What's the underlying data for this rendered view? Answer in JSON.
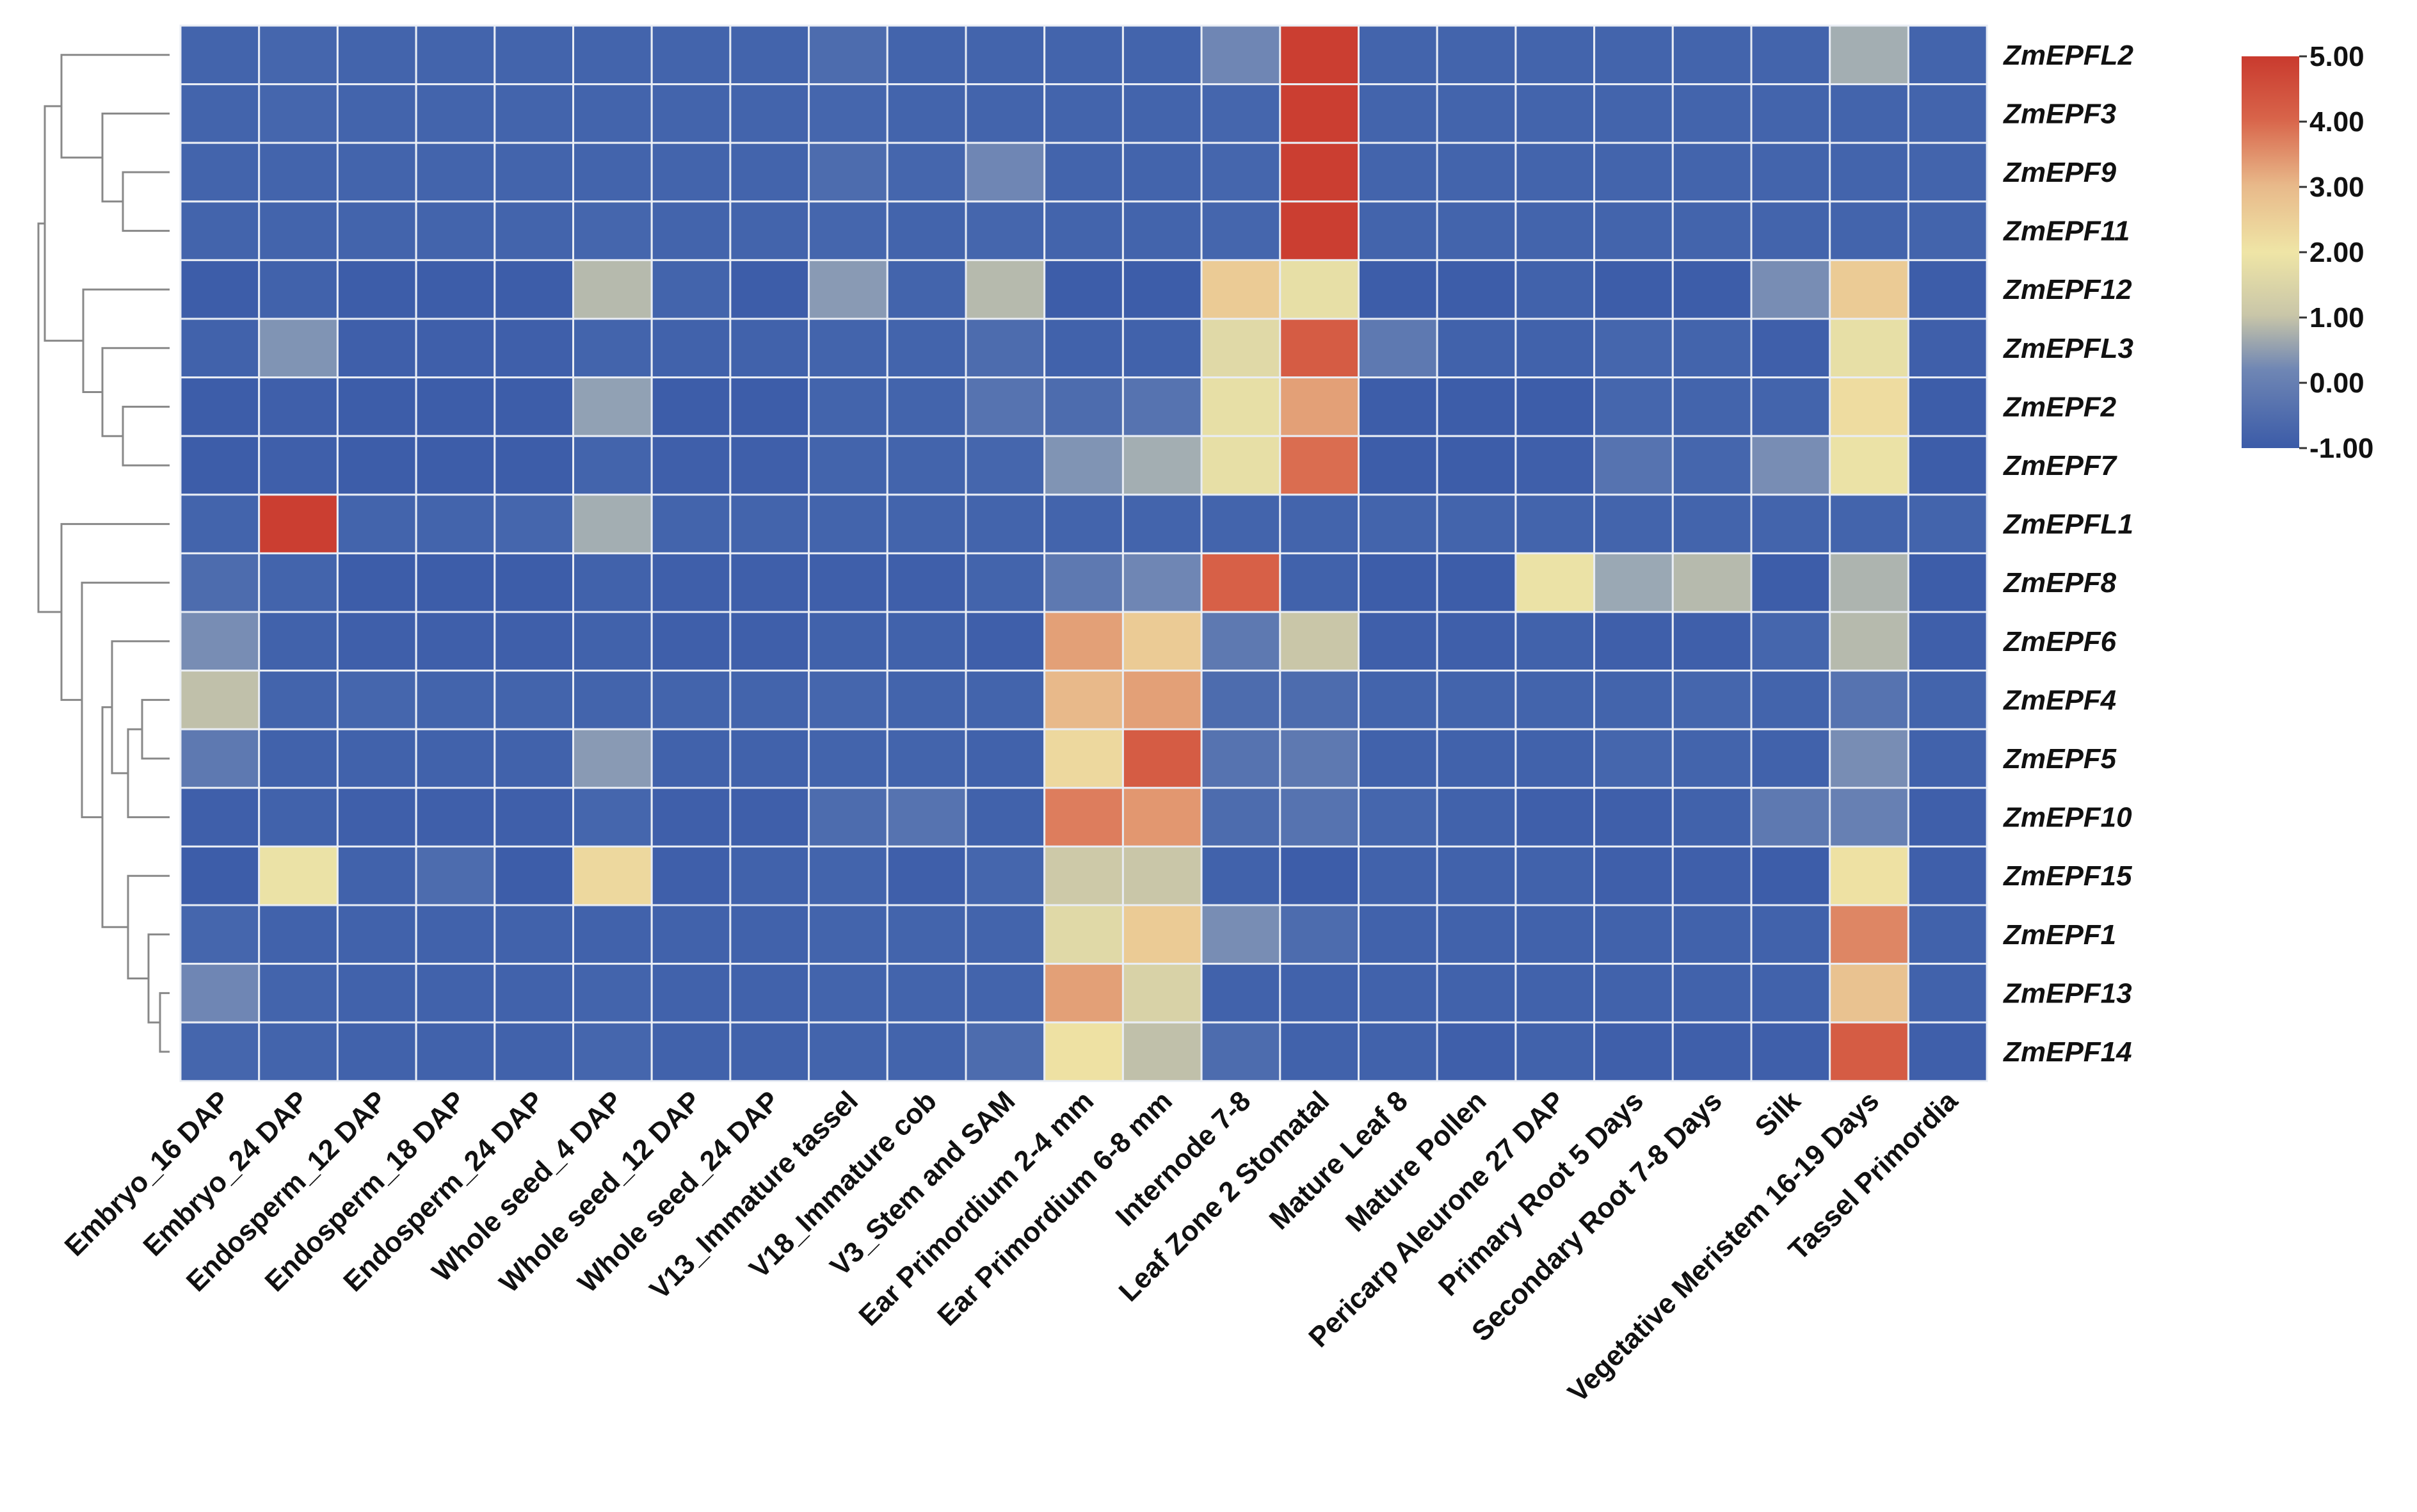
{
  "chart_data": {
    "type": "heatmap",
    "title": "",
    "rows": [
      "ZmEPFL2",
      "ZmEPF3",
      "ZmEPF9",
      "ZmEPF11",
      "ZmEPF12",
      "ZmEPFL3",
      "ZmEPF2",
      "ZmEPF7",
      "ZmEPFL1",
      "ZmEPF8",
      "ZmEPF6",
      "ZmEPF4",
      "ZmEPF5",
      "ZmEPF10",
      "ZmEPF15",
      "ZmEPF1",
      "ZmEPF13",
      "ZmEPF14"
    ],
    "columns": [
      "Embryo_16 DAP",
      "Embryo_24 DAP",
      "Endosperm_12 DAP",
      "Endosperm_18 DAP",
      "Endosperm_24 DAP",
      "Whole seed_4 DAP",
      "Whole seed_12 DAP",
      "Whole seed_24 DAP",
      "V13_Immature tassel",
      "V18_Immature cob",
      "V3_Stem and SAM",
      "Ear Primordium 2-4 mm",
      "Ear Primordium 6-8 mm",
      "Internode 7-8",
      "Leaf Zone 2 Stomatal",
      "Mature Leaf 8",
      "Mature Pollen",
      "Pericarp Aleurone 27 DAP",
      "Primary Root 5 Days",
      "Secondary Root 7-8 Days",
      "Silk",
      "Vegetative Meristem 16-19 Days",
      "Tassel Primordia"
    ],
    "values": [
      [
        -0.6,
        -0.5,
        -0.6,
        -0.6,
        -0.6,
        -0.6,
        -0.6,
        -0.6,
        -0.4,
        -0.6,
        -0.6,
        -0.6,
        -0.6,
        0.0,
        4.9,
        -0.6,
        -0.6,
        -0.6,
        -0.6,
        -0.6,
        -0.6,
        0.6,
        -0.6
      ],
      [
        -0.6,
        -0.5,
        -0.6,
        -0.6,
        -0.6,
        -0.6,
        -0.6,
        -0.6,
        -0.5,
        -0.6,
        -0.6,
        -0.6,
        -0.6,
        -0.5,
        4.9,
        -0.6,
        -0.6,
        -0.6,
        -0.6,
        -0.6,
        -0.6,
        -0.6,
        -0.6
      ],
      [
        -0.6,
        -0.6,
        -0.6,
        -0.6,
        -0.6,
        -0.6,
        -0.6,
        -0.6,
        -0.4,
        -0.5,
        0.0,
        -0.6,
        -0.6,
        -0.5,
        4.9,
        -0.6,
        -0.6,
        -0.6,
        -0.6,
        -0.6,
        -0.6,
        -0.6,
        -0.6
      ],
      [
        -0.6,
        -0.6,
        -0.6,
        -0.6,
        -0.6,
        -0.5,
        -0.6,
        -0.6,
        -0.5,
        -0.6,
        -0.5,
        -0.6,
        -0.6,
        -0.5,
        4.9,
        -0.6,
        -0.6,
        -0.6,
        -0.6,
        -0.6,
        -0.6,
        -0.6,
        -0.6
      ],
      [
        -0.9,
        -0.7,
        -0.9,
        -0.9,
        -0.9,
        0.8,
        -0.6,
        -0.9,
        0.3,
        -0.6,
        0.8,
        -0.9,
        -0.9,
        2.6,
        1.8,
        -0.9,
        -0.9,
        -0.7,
        -0.9,
        -0.9,
        0.1,
        2.6,
        -0.9
      ],
      [
        -0.7,
        0.2,
        -0.8,
        -0.8,
        -0.8,
        -0.6,
        -0.7,
        -0.7,
        -0.6,
        -0.6,
        -0.4,
        -0.7,
        -0.7,
        1.6,
        4.2,
        -0.2,
        -0.7,
        -0.7,
        -0.5,
        -0.6,
        -0.8,
        1.8,
        -0.8
      ],
      [
        -0.9,
        -0.8,
        -0.9,
        -0.9,
        -0.9,
        0.4,
        -0.9,
        -0.9,
        -0.6,
        -0.6,
        -0.3,
        -0.4,
        -0.3,
        1.8,
        3.3,
        -0.9,
        -0.9,
        -0.9,
        -0.5,
        -0.6,
        -0.6,
        2.2,
        -0.9
      ],
      [
        -0.9,
        -0.8,
        -0.9,
        -0.9,
        -0.9,
        -0.6,
        -0.8,
        -0.8,
        -0.6,
        -0.6,
        -0.5,
        0.2,
        0.6,
        1.8,
        3.9,
        -0.9,
        -0.9,
        -0.8,
        -0.3,
        -0.5,
        0.1,
        1.9,
        -0.9
      ],
      [
        -0.6,
        4.9,
        -0.6,
        -0.6,
        -0.5,
        0.6,
        -0.6,
        -0.6,
        -0.6,
        -0.6,
        -0.6,
        -0.6,
        -0.6,
        -0.6,
        -0.6,
        -0.6,
        -0.6,
        -0.6,
        -0.6,
        -0.6,
        -0.6,
        -0.6,
        -0.6
      ],
      [
        -0.4,
        -0.6,
        -0.9,
        -0.9,
        -0.9,
        -0.7,
        -0.8,
        -0.8,
        -0.8,
        -0.8,
        -0.6,
        -0.2,
        0.0,
        4.1,
        -0.7,
        -0.9,
        -0.9,
        1.9,
        0.5,
        0.8,
        -0.9,
        0.7,
        -0.9
      ],
      [
        0.1,
        -0.7,
        -0.8,
        -0.8,
        -0.8,
        -0.7,
        -0.8,
        -0.8,
        -0.7,
        -0.7,
        -0.8,
        3.3,
        2.6,
        -0.2,
        1.0,
        -0.8,
        -0.8,
        -0.7,
        -0.8,
        -0.8,
        -0.5,
        0.8,
        -0.8
      ],
      [
        0.9,
        -0.6,
        -0.5,
        -0.6,
        -0.6,
        -0.6,
        -0.6,
        -0.6,
        -0.5,
        -0.6,
        -0.6,
        3.0,
        3.3,
        -0.4,
        -0.4,
        -0.6,
        -0.6,
        -0.6,
        -0.6,
        -0.5,
        -0.6,
        -0.3,
        -0.6
      ],
      [
        -0.2,
        -0.7,
        -0.7,
        -0.7,
        -0.7,
        0.3,
        -0.7,
        -0.7,
        -0.6,
        -0.6,
        -0.7,
        2.3,
        4.2,
        -0.3,
        -0.2,
        -0.7,
        -0.7,
        -0.7,
        -0.5,
        -0.6,
        -0.7,
        0.1,
        -0.7
      ],
      [
        -0.8,
        -0.7,
        -0.8,
        -0.8,
        -0.8,
        -0.5,
        -0.8,
        -0.8,
        -0.4,
        -0.3,
        -0.7,
        3.7,
        3.4,
        -0.4,
        -0.3,
        -0.5,
        -0.7,
        -0.8,
        -0.8,
        -0.7,
        -0.2,
        -0.1,
        -0.8
      ],
      [
        -0.9,
        1.9,
        -0.7,
        -0.4,
        -0.9,
        2.3,
        -0.8,
        -0.7,
        -0.6,
        -0.8,
        -0.5,
        1.1,
        1.0,
        -0.7,
        -0.9,
        -0.7,
        -0.7,
        -0.7,
        -0.8,
        -0.8,
        -0.9,
        2.1,
        -0.8
      ],
      [
        -0.5,
        -0.7,
        -0.7,
        -0.7,
        -0.7,
        -0.7,
        -0.7,
        -0.7,
        -0.6,
        -0.6,
        -0.6,
        1.6,
        2.6,
        0.1,
        -0.4,
        -0.7,
        -0.7,
        -0.7,
        -0.7,
        -0.7,
        -0.7,
        3.6,
        -0.7
      ],
      [
        0.0,
        -0.6,
        -0.7,
        -0.7,
        -0.7,
        -0.6,
        -0.7,
        -0.7,
        -0.6,
        -0.6,
        -0.6,
        3.3,
        1.4,
        -0.7,
        -0.7,
        -0.7,
        -0.7,
        -0.7,
        -0.7,
        -0.7,
        -0.7,
        2.8,
        -0.7
      ],
      [
        -0.5,
        -0.6,
        -0.7,
        -0.7,
        -0.7,
        -0.5,
        -0.7,
        -0.7,
        -0.6,
        -0.6,
        -0.4,
        2.1,
        0.9,
        -0.4,
        -0.7,
        -0.7,
        -0.8,
        -0.7,
        -0.8,
        -0.8,
        -0.8,
        4.2,
        -0.8
      ]
    ],
    "colorbar": {
      "min": -1.0,
      "max": 5.0,
      "ticks": [
        "5.00",
        "4.00",
        "3.00",
        "2.00",
        "1.00",
        "0.00",
        "-1.00"
      ],
      "colors": [
        "#3b5ba8",
        "#4a6cb0",
        "#c9c6a8",
        "#efe5a6",
        "#e8b98a",
        "#d8644a",
        "#c93a2e"
      ]
    },
    "dendrogram": "row clustering tree shown on the left",
    "xlabel": "",
    "ylabel": ""
  }
}
